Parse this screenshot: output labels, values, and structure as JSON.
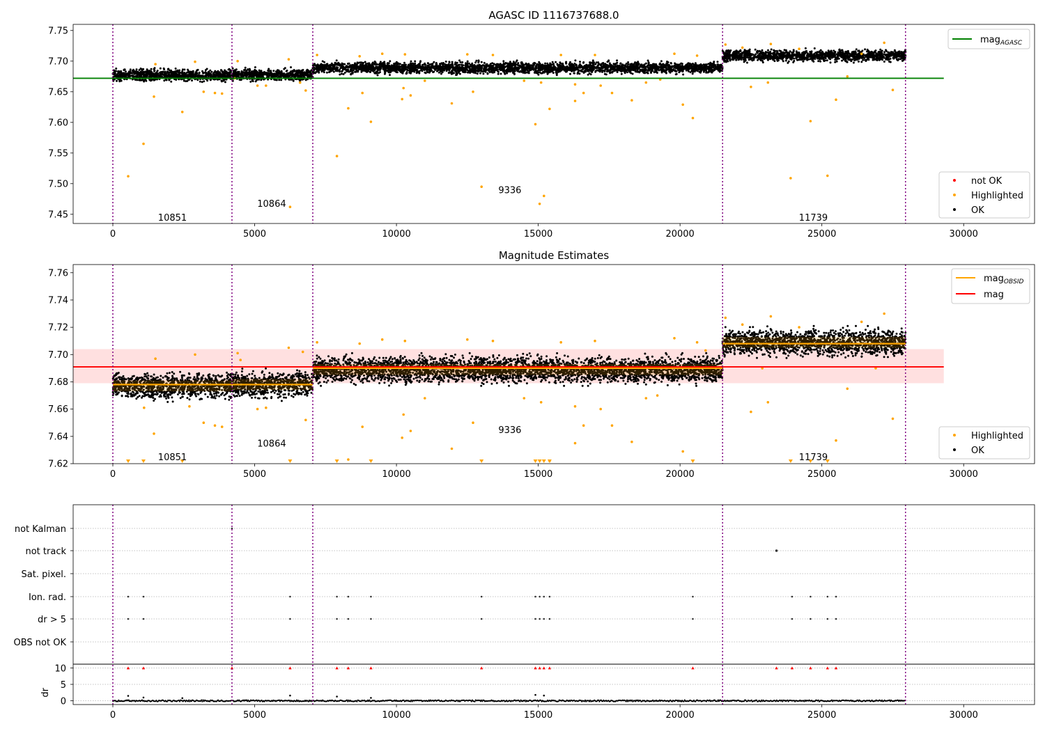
{
  "chart_data": [
    {
      "type": "scatter",
      "title": "AGASC ID 1116737688.0",
      "xlabel": "",
      "ylabel": "",
      "xlim": [
        -1400,
        32500
      ],
      "ylim": [
        7.435,
        7.76
      ],
      "xticks": [
        0,
        5000,
        10000,
        15000,
        20000,
        25000,
        30000
      ],
      "yticks": [
        7.45,
        7.5,
        7.55,
        7.6,
        7.65,
        7.7,
        7.75
      ],
      "ytick_decimals": 2,
      "obs_boundaries": [
        0,
        4200,
        7050,
        21500,
        27950
      ],
      "obs_labels": [
        {
          "text": "10851",
          "x": 2100,
          "y": 7.445
        },
        {
          "text": "10864",
          "x": 5600,
          "y": 7.468
        },
        {
          "text": "9336",
          "x": 14000,
          "y": 7.49
        },
        {
          "text": "11739",
          "x": 24700,
          "y": 7.445
        }
      ],
      "bands": [
        {
          "x": [
            0,
            4200
          ],
          "center": 7.677,
          "spread": 0.008
        },
        {
          "x": [
            4200,
            7050
          ],
          "center": 7.678,
          "spread": 0.008
        },
        {
          "x": [
            7050,
            21500
          ],
          "center": 7.689,
          "spread": 0.008
        },
        {
          "x": [
            21500,
            27950
          ],
          "center": 7.709,
          "spread": 0.008
        }
      ],
      "hlines": [
        {
          "name": "mag_AGASC",
          "y": 7.672,
          "x": [
            -1400,
            29300
          ],
          "color": "#008000"
        }
      ],
      "highlighted": [
        [
          540,
          7.512
        ],
        [
          1080,
          7.565
        ],
        [
          1450,
          7.642
        ],
        [
          2450,
          7.617
        ],
        [
          3200,
          7.65
        ],
        [
          3600,
          7.648
        ],
        [
          3850,
          7.647
        ],
        [
          4300,
          7.672
        ],
        [
          5100,
          7.66
        ],
        [
          5400,
          7.66
        ],
        [
          6250,
          7.462
        ],
        [
          6600,
          7.665
        ],
        [
          6800,
          7.652
        ],
        [
          7900,
          7.545
        ],
        [
          8300,
          7.623
        ],
        [
          8800,
          7.648
        ],
        [
          9100,
          7.601
        ],
        [
          10200,
          7.638
        ],
        [
          10250,
          7.656
        ],
        [
          10500,
          7.644
        ],
        [
          11000,
          7.668
        ],
        [
          11950,
          7.631
        ],
        [
          12700,
          7.65
        ],
        [
          13000,
          7.495
        ],
        [
          14500,
          7.668
        ],
        [
          14900,
          7.597
        ],
        [
          15050,
          7.467
        ],
        [
          15200,
          7.48
        ],
        [
          15400,
          7.622
        ],
        [
          15100,
          7.665
        ],
        [
          16300,
          7.635
        ],
        [
          16300,
          7.662
        ],
        [
          16600,
          7.648
        ],
        [
          17200,
          7.66
        ],
        [
          17600,
          7.648
        ],
        [
          18300,
          7.636
        ],
        [
          18800,
          7.665
        ],
        [
          19300,
          7.67
        ],
        [
          20100,
          7.629
        ],
        [
          20450,
          7.607
        ],
        [
          22500,
          7.658
        ],
        [
          23100,
          7.665
        ],
        [
          23900,
          7.509
        ],
        [
          24600,
          7.602
        ],
        [
          25200,
          7.513
        ],
        [
          25500,
          7.637
        ],
        [
          25900,
          7.675
        ],
        [
          27500,
          7.653
        ],
        [
          26400,
          7.712
        ],
        [
          27200,
          7.73
        ],
        [
          9500,
          7.712
        ],
        [
          12500,
          7.711
        ],
        [
          17000,
          7.71
        ],
        [
          19800,
          7.712
        ],
        [
          13400,
          7.71
        ],
        [
          6200,
          7.703
        ],
        [
          4400,
          7.7
        ],
        [
          2900,
          7.699
        ],
        [
          7200,
          7.71
        ],
        [
          21600,
          7.727
        ],
        [
          22200,
          7.722
        ],
        [
          23200,
          7.728
        ],
        [
          24200,
          7.72
        ],
        [
          10300,
          7.711
        ],
        [
          15800,
          7.71
        ],
        [
          20600,
          7.709
        ],
        [
          8700,
          7.708
        ],
        [
          1500,
          7.695
        ]
      ],
      "not_ok": [],
      "legend_top": [
        {
          "name_main": "mag",
          "name_sub": "AGASC",
          "color": "#008000"
        }
      ],
      "legend_bottom": [
        {
          "name": "not OK",
          "color": "#ff0000"
        },
        {
          "name": "Highlighted",
          "color": "#ffa500"
        },
        {
          "name": "OK",
          "color": "#000000"
        }
      ],
      "legend_placement": "top-right / bottom-right"
    },
    {
      "type": "scatter",
      "title": "Magnitude Estimates",
      "xlabel": "",
      "ylabel": "",
      "xlim": [
        -1400,
        32500
      ],
      "ylim": [
        7.62,
        7.766
      ],
      "xticks": [
        0,
        5000,
        10000,
        15000,
        20000,
        25000,
        30000
      ],
      "yticks": [
        7.62,
        7.64,
        7.66,
        7.68,
        7.7,
        7.72,
        7.74,
        7.76
      ],
      "ytick_decimals": 2,
      "obs_boundaries": [
        0,
        4200,
        7050,
        21500,
        27950
      ],
      "obs_labels": [
        {
          "text": "10851",
          "x": 2100,
          "y": 7.625
        },
        {
          "text": "10864",
          "x": 5600,
          "y": 7.635
        },
        {
          "text": "9336",
          "x": 14000,
          "y": 7.645
        },
        {
          "text": "11739",
          "x": 24700,
          "y": 7.625
        }
      ],
      "bands": [
        {
          "x": [
            0,
            4200
          ],
          "center": 7.677,
          "spread": 0.008
        },
        {
          "x": [
            4200,
            7050
          ],
          "center": 7.678,
          "spread": 0.008
        },
        {
          "x": [
            7050,
            21500
          ],
          "center": 7.689,
          "spread": 0.008
        },
        {
          "x": [
            21500,
            27950
          ],
          "center": 7.709,
          "spread": 0.008
        }
      ],
      "mag_obsid": [
        {
          "x": [
            0,
            7050
          ],
          "y": 7.678
        },
        {
          "x": [
            7050,
            21500
          ],
          "y": 7.69
        },
        {
          "x": [
            21500,
            27950
          ],
          "y": 7.708
        }
      ],
      "mag": {
        "y": 7.691,
        "band": [
          7.679,
          7.704
        ],
        "x": [
          -1400,
          29300
        ]
      },
      "highlighted": [
        [
          1450,
          7.642
        ],
        [
          3200,
          7.65
        ],
        [
          3600,
          7.648
        ],
        [
          3850,
          7.647
        ],
        [
          1100,
          7.661
        ],
        [
          2700,
          7.662
        ],
        [
          5100,
          7.66
        ],
        [
          5400,
          7.661
        ],
        [
          6800,
          7.652
        ],
        [
          8300,
          7.623
        ],
        [
          8800,
          7.647
        ],
        [
          10200,
          7.639
        ],
        [
          10250,
          7.656
        ],
        [
          10500,
          7.644
        ],
        [
          11000,
          7.668
        ],
        [
          11950,
          7.631
        ],
        [
          12700,
          7.65
        ],
        [
          14500,
          7.668
        ],
        [
          15100,
          7.665
        ],
        [
          15400,
          7.622
        ],
        [
          16300,
          7.635
        ],
        [
          16300,
          7.662
        ],
        [
          16600,
          7.648
        ],
        [
          17200,
          7.66
        ],
        [
          17600,
          7.648
        ],
        [
          18300,
          7.636
        ],
        [
          18800,
          7.668
        ],
        [
          19200,
          7.67
        ],
        [
          20100,
          7.629
        ],
        [
          22500,
          7.658
        ],
        [
          23100,
          7.665
        ],
        [
          25500,
          7.637
        ],
        [
          25900,
          7.675
        ],
        [
          27500,
          7.653
        ],
        [
          26400,
          7.724
        ],
        [
          27200,
          7.73
        ],
        [
          23200,
          7.728
        ],
        [
          21600,
          7.727
        ],
        [
          22200,
          7.722
        ],
        [
          24200,
          7.72
        ],
        [
          9500,
          7.711
        ],
        [
          12500,
          7.711
        ],
        [
          17000,
          7.71
        ],
        [
          19800,
          7.712
        ],
        [
          13400,
          7.71
        ],
        [
          6200,
          7.705
        ],
        [
          4400,
          7.701
        ],
        [
          2900,
          7.7
        ],
        [
          7200,
          7.709
        ],
        [
          10300,
          7.71
        ],
        [
          15800,
          7.709
        ],
        [
          20600,
          7.709
        ],
        [
          8700,
          7.708
        ],
        [
          1500,
          7.697
        ],
        [
          4500,
          7.696
        ],
        [
          6700,
          7.702
        ],
        [
          20900,
          7.703
        ],
        [
          22900,
          7.69
        ],
        [
          26900,
          7.69
        ]
      ],
      "clipped": [
        540,
        1080,
        2450,
        6250,
        7900,
        9100,
        13000,
        14900,
        15050,
        15200,
        15400,
        20450,
        23900,
        24600,
        25200
      ],
      "clip_value": 7.62,
      "legend_top": [
        {
          "name_main": "mag",
          "name_sub": "OBSID",
          "color": "#ffa500"
        },
        {
          "name_main": "mag",
          "name_sub": "",
          "color": "#ff0000"
        }
      ],
      "legend_bottom": [
        {
          "name": "Highlighted",
          "color": "#ffa500"
        },
        {
          "name": "OK",
          "color": "#000000"
        }
      ],
      "legend_placement": "top-right / bottom-right"
    },
    {
      "type": "scatter",
      "title": "",
      "xlabel": "",
      "ylabel": "",
      "xlim": [
        -1400,
        32500
      ],
      "xticks": [
        0,
        5000,
        10000,
        15000,
        20000,
        25000,
        30000
      ],
      "obs_boundaries": [
        0,
        4200,
        7050,
        21500,
        27950
      ],
      "flag_categories": [
        "not Kalman",
        "not track",
        "Sat. pixel.",
        "Ion. rad.",
        "dr > 5",
        "OBS not OK"
      ],
      "flag_points": {
        "not Kalman": [
          4200
        ],
        "not track": [
          23400
        ],
        "Sat. pixel.": [],
        "Ion. rad.": [
          540,
          1080,
          6250,
          7900,
          8300,
          9100,
          13000,
          14900,
          15050,
          15200,
          15400,
          20450,
          23950,
          24600,
          25200,
          25500
        ],
        "dr > 5": [
          540,
          1080,
          6250,
          7900,
          8300,
          9100,
          13000,
          14900,
          15050,
          15200,
          15400,
          20450,
          23950,
          24600,
          25200,
          25500
        ],
        "OBS not OK": []
      },
      "dr_ylabel": "dr",
      "dr_yticks": [
        0,
        5,
        10
      ],
      "dr_ylim": [
        -0.5,
        10.5
      ],
      "dr_clipped": [
        540,
        1080,
        4200,
        6250,
        7900,
        8300,
        9100,
        13000,
        14900,
        15050,
        15200,
        15400,
        20450,
        23400,
        23950,
        24600,
        25200,
        25500
      ],
      "dr_outliers": [
        [
          540,
          1.5
        ],
        [
          1080,
          1.0
        ],
        [
          6250,
          1.6
        ],
        [
          7900,
          1.3
        ],
        [
          14900,
          1.8
        ],
        [
          15200,
          1.6
        ],
        [
          9100,
          0.9
        ],
        [
          2450,
          0.8
        ]
      ]
    }
  ]
}
